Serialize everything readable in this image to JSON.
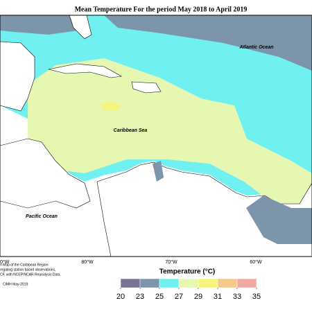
{
  "header": {
    "title": "Mean Temperature For the period May 2018 to April 2019"
  },
  "map": {
    "labels": [
      "Atlantic Ocean",
      "Caribbean Sea",
      "Pacific Ocean"
    ],
    "longitudes": [
      "0°W",
      "80°W",
      "70°W",
      "60°W"
    ]
  },
  "legend": {
    "title": "Temperature (°C)",
    "ticks": [
      20,
      23,
      25,
      27,
      29,
      31,
      33,
      35
    ],
    "colors": [
      "#7b7394",
      "#7d95ab",
      "#70f0f0",
      "#e6f7b2",
      "#f5f57e",
      "#f5c98a",
      "#f0aaa2"
    ]
  },
  "footnote": {
    "lines": [
      "n Map of the Caribbean Region",
      "regating station based observations,",
      "CF, with NCEP/NCAR Reanalysis Data."
    ],
    "credit": "CIMH May-2019"
  }
}
